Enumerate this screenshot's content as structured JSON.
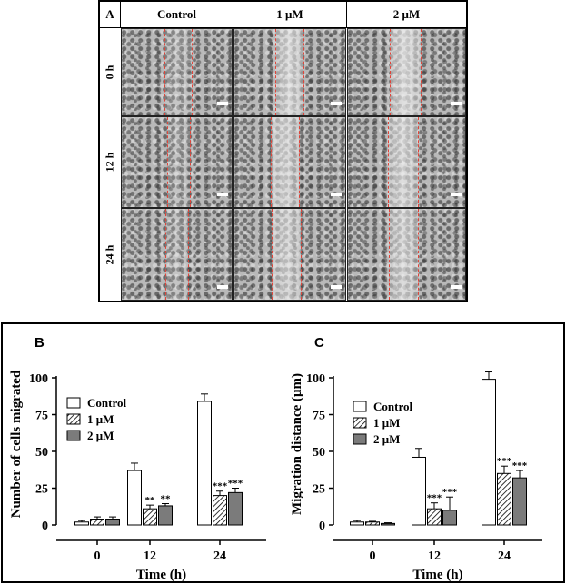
{
  "panel_a": {
    "label": "A",
    "columns": [
      "Control",
      "1 μM",
      "2 μM"
    ],
    "rows": [
      "0 h",
      "12 h",
      "24 h"
    ]
  },
  "colors": {
    "wound_line": "#e0453a",
    "bar_2uM": "#7b7b7b",
    "bar_control": "#ffffff"
  },
  "chart_data": [
    {
      "type": "bar",
      "panel_label": "B",
      "ylabel": "Number of cells migrated",
      "xlabel": "Time (h)",
      "categories": [
        "0",
        "12",
        "24"
      ],
      "ylim": [
        0,
        100
      ],
      "yticks": [
        "0",
        "25",
        "50",
        "75",
        "100"
      ],
      "legend_position": "upper-left",
      "series": [
        {
          "name": "Control",
          "fill": "white",
          "values": [
            2,
            37,
            84
          ],
          "errors": [
            1,
            5,
            5
          ]
        },
        {
          "name": "1 μM",
          "fill": "hatched",
          "values": [
            4,
            11,
            20
          ],
          "errors": [
            1.5,
            2.5,
            3
          ],
          "significance": [
            "",
            "**",
            "***"
          ]
        },
        {
          "name": "2 μM",
          "fill": "gray",
          "values": [
            4,
            13,
            22
          ],
          "errors": [
            1.5,
            1.5,
            3
          ],
          "significance": [
            "",
            "**",
            "***"
          ]
        }
      ]
    },
    {
      "type": "bar",
      "panel_label": "C",
      "ylabel": "Migration distance (μm)",
      "xlabel": "Time (h)",
      "categories": [
        "0",
        "12",
        "24"
      ],
      "ylim": [
        0,
        100
      ],
      "yticks": [
        "0",
        "25",
        "50",
        "75",
        "100"
      ],
      "legend_position": "upper-left",
      "series": [
        {
          "name": "Control",
          "fill": "white",
          "values": [
            2,
            46,
            99
          ],
          "errors": [
            1,
            6,
            5
          ]
        },
        {
          "name": "1 μM",
          "fill": "hatched",
          "values": [
            2,
            11,
            35
          ],
          "errors": [
            0.5,
            4,
            5
          ],
          "significance": [
            "",
            "***",
            "***"
          ]
        },
        {
          "name": "2 μM",
          "fill": "gray",
          "values": [
            1,
            10,
            32
          ],
          "errors": [
            0.5,
            9,
            5
          ],
          "significance": [
            "",
            "***",
            "***"
          ]
        }
      ]
    }
  ]
}
